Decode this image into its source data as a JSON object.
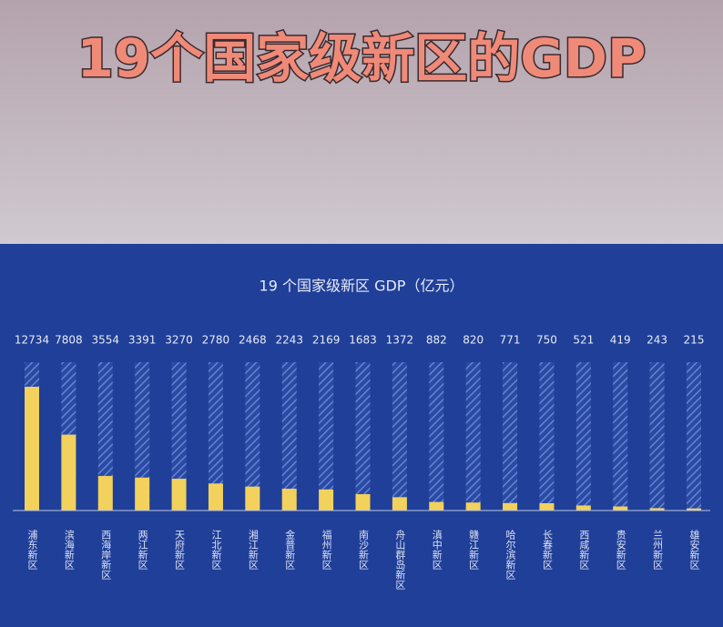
{
  "header": {
    "title": "19个国家级新区的GDP"
  },
  "chart_data": {
    "type": "bar",
    "title": "19 个国家级新区 GDP（亿元）",
    "categories": [
      "浦东新区",
      "滨海新区",
      "西海岸新区",
      "两江新区",
      "天府新区",
      "江北新区",
      "湘江新区",
      "金普新区",
      "福州新区",
      "南沙新区",
      "舟山群岛新区",
      "滇中新区",
      "赣江新区",
      "哈尔滨新区",
      "长春新区",
      "西咸新区",
      "贵安新区",
      "兰州新区",
      "雄安新区"
    ],
    "values": [
      12734,
      7808,
      3554,
      3391,
      3270,
      2780,
      2468,
      2243,
      2169,
      1683,
      1372,
      882,
      820,
      771,
      750,
      521,
      419,
      243,
      215
    ],
    "color": "#f2d15c"
  }
}
